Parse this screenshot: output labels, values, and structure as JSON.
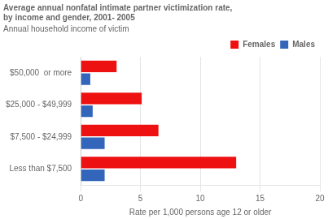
{
  "chart_data": {
    "type": "bar",
    "orientation": "horizontal",
    "title": [
      "Average annual nonfatal intimate partner victimization rate,",
      "by income and gender, 2001- 2005"
    ],
    "subtitle": "Annual household income of victim",
    "categories": [
      "Less than $7,500",
      "$7,500 - $24,999",
      "$25,000 - $49,999",
      "$50,000  or more"
    ],
    "series": [
      {
        "name": "Females",
        "color": "#ee1111",
        "values": [
          13.0,
          6.5,
          5.1,
          3.0
        ]
      },
      {
        "name": "Males",
        "color": "#3366bb",
        "values": [
          2.0,
          2.0,
          1.0,
          0.8
        ]
      }
    ],
    "xlabel": "Rate per 1,000 persons age 12 or older",
    "xlim": [
      0,
      20
    ],
    "xticks": [
      0,
      5,
      10,
      15,
      20
    ],
    "grid": true,
    "legend": "upper right"
  }
}
